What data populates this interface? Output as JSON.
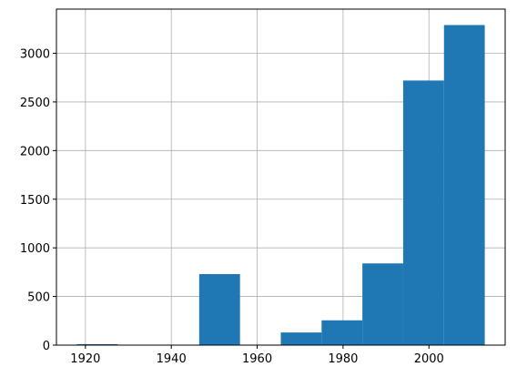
{
  "chart_data": {
    "type": "histogram",
    "bins": [
      1918,
      1927.5,
      1937,
      1946.5,
      1956,
      1965.5,
      1975,
      1984.5,
      1994,
      2003.5,
      2013
    ],
    "values": [
      10,
      0,
      0,
      730,
      5,
      130,
      255,
      840,
      2720,
      3290
    ],
    "color": "#1f77b4",
    "xlim": [
      1913.25,
      2017.75
    ],
    "xticks": [
      1920,
      1940,
      1960,
      1980,
      2000
    ],
    "ylim": [
      0,
      3454
    ],
    "yticks": [
      0,
      500,
      1000,
      1500,
      2000,
      2500,
      3000
    ],
    "grid": true
  }
}
